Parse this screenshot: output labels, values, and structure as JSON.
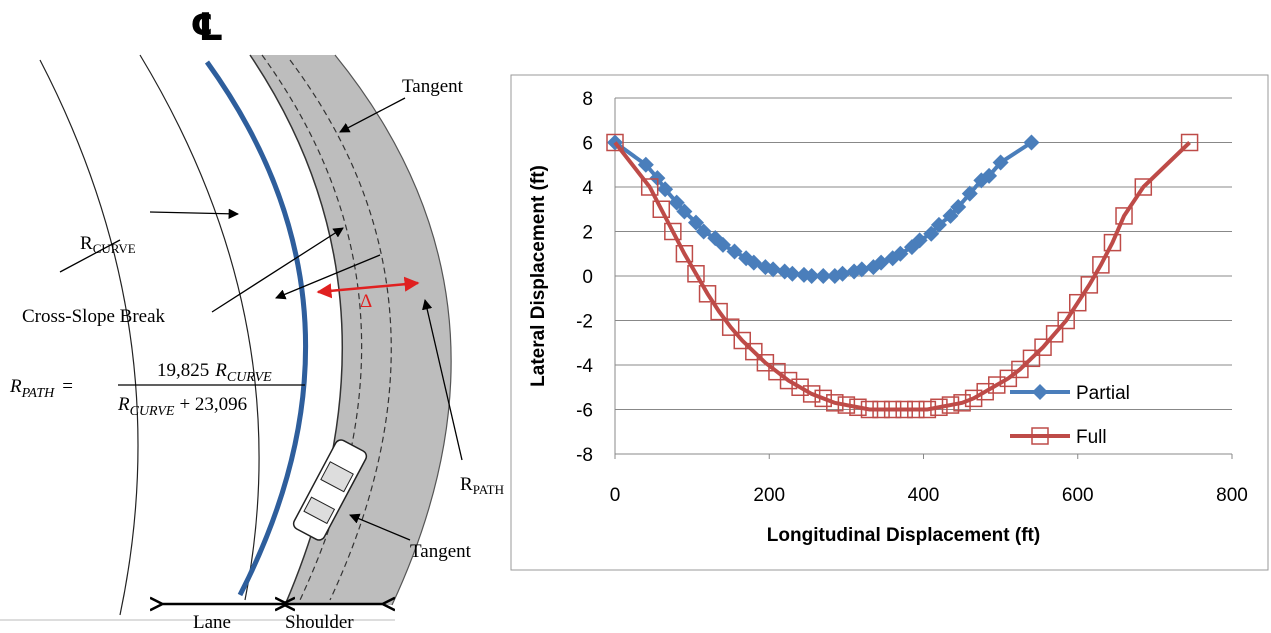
{
  "diagram": {
    "centerline_symbol": "℄",
    "tangent_top": "Tangent",
    "r_curve": {
      "symbol": "R",
      "sub": "CURVE"
    },
    "cross_slope_break": "Cross-Slope Break",
    "delta": "Δ",
    "r_path": {
      "symbol": "R",
      "sub": "PATH"
    },
    "formula": {
      "lhs_symbol": "R",
      "lhs_sub": "PATH",
      "equals": "=",
      "num_coef": "19,825",
      "num_symbol": "R",
      "num_sub": "CURVE",
      "den_symbol": "R",
      "den_sub": "CURVE",
      "den_rest": "+ 23,096"
    },
    "tangent_bottom": "Tangent",
    "lane": "Lane",
    "shoulder": "Shoulder"
  },
  "chart_data": {
    "type": "line",
    "x_label": "Longitudinal Displacement (ft)",
    "y_label": "Lateral Displacement (ft)",
    "xlim": [
      0,
      800
    ],
    "xticks": [
      0,
      200,
      400,
      600,
      800
    ],
    "ylim": [
      -8,
      8
    ],
    "yticks": [
      -8,
      -6,
      -4,
      -2,
      0,
      2,
      4,
      6,
      8
    ],
    "grid": true,
    "legend": "right",
    "series": [
      {
        "name": "Partial",
        "color": "#4a7ebb",
        "marker": "diamond",
        "x": [
          0,
          40,
          55,
          65,
          80,
          90,
          105,
          115,
          130,
          140,
          155,
          170,
          180,
          195,
          205,
          220,
          230,
          245,
          255,
          270,
          285,
          295,
          310,
          320,
          335,
          345,
          360,
          370,
          385,
          395,
          410,
          420,
          435,
          445,
          460,
          475,
          485,
          500,
          540
        ],
        "values": [
          6,
          5.0,
          4.4,
          3.9,
          3.3,
          2.9,
          2.4,
          2.0,
          1.7,
          1.4,
          1.1,
          0.8,
          0.6,
          0.4,
          0.3,
          0.2,
          0.1,
          0.05,
          0,
          0,
          0,
          0.1,
          0.2,
          0.3,
          0.4,
          0.6,
          0.8,
          1.0,
          1.3,
          1.6,
          1.9,
          2.3,
          2.7,
          3.1,
          3.7,
          4.3,
          4.5,
          5.1,
          6
        ]
      },
      {
        "name": "Full",
        "color": "#be4b48",
        "marker": "square",
        "x": [
          0,
          45,
          60,
          75,
          90,
          105,
          120,
          135,
          150,
          165,
          180,
          195,
          210,
          225,
          240,
          255,
          270,
          285,
          300,
          315,
          330,
          345,
          360,
          375,
          390,
          405,
          420,
          435,
          450,
          465,
          480,
          495,
          510,
          525,
          540,
          555,
          570,
          585,
          600,
          615,
          630,
          645,
          660,
          685,
          745
        ],
        "values": [
          6,
          4,
          3,
          2,
          1,
          0.1,
          -0.8,
          -1.6,
          -2.3,
          -2.9,
          -3.4,
          -3.9,
          -4.3,
          -4.7,
          -5.0,
          -5.3,
          -5.5,
          -5.7,
          -5.8,
          -5.9,
          -6,
          -6,
          -6,
          -6,
          -6,
          -6,
          -5.9,
          -5.8,
          -5.7,
          -5.5,
          -5.2,
          -4.9,
          -4.6,
          -4.2,
          -3.7,
          -3.2,
          -2.6,
          -2.0,
          -1.2,
          -0.4,
          0.5,
          1.5,
          2.7,
          4,
          6
        ]
      }
    ]
  }
}
